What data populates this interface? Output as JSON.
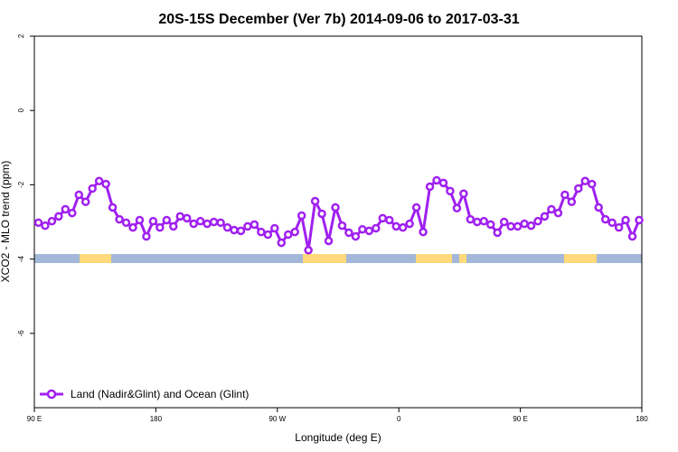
{
  "chart_data": {
    "type": "line",
    "title": "20S-15S December (Ver 7b)   2014-09-06 to 2017-03-31",
    "xlabel": "Longitude (deg E)",
    "ylabel": "XCO2 - MLO trend (ppm)",
    "xlim": [
      90,
      540
    ],
    "xticks": [
      {
        "value": 90,
        "label": "90 E"
      },
      180,
      {
        "value": 270,
        "label": "90 W"
      },
      {
        "value": 360,
        "label": "0"
      },
      {
        "value": 450,
        "label": "90 E"
      },
      {
        "value": 540,
        "label": "180"
      }
    ],
    "ylim": [
      -8,
      2
    ],
    "yticks": [
      2,
      0,
      -2,
      -4,
      -6
    ],
    "legend": "bottom-left",
    "x": [
      93,
      98,
      103,
      108,
      113,
      118,
      123,
      128,
      133,
      138,
      143,
      148,
      153,
      158,
      163,
      168,
      173,
      178,
      183,
      188,
      193,
      198,
      203,
      208,
      213,
      218,
      223,
      228,
      233,
      238,
      243,
      248,
      253,
      258,
      263,
      268,
      273,
      278,
      283,
      288,
      293,
      298,
      303,
      308,
      313,
      318,
      323,
      328,
      333,
      338,
      343,
      348,
      353,
      358,
      363,
      368,
      373,
      378,
      383,
      388,
      393,
      398,
      403,
      408,
      413,
      418,
      423,
      428,
      433,
      438,
      443,
      448,
      453,
      458,
      463,
      468,
      473,
      478,
      483,
      488,
      493,
      498,
      503,
      508,
      513,
      518,
      523,
      528,
      533,
      538
    ],
    "series": [
      {
        "name": "Land (Nadir&Glint) and Ocean (Glint)",
        "color": "#a020f0",
        "values": [
          -3.02,
          -3.1,
          -2.98,
          -2.85,
          -2.66,
          -2.76,
          -2.27,
          -2.46,
          -2.1,
          -1.9,
          -1.98,
          -2.61,
          -2.93,
          -3.02,
          -3.15,
          -2.95,
          -3.39,
          -2.98,
          -3.15,
          -2.95,
          -3.12,
          -2.85,
          -2.9,
          -3.05,
          -2.98,
          -3.05,
          -3.0,
          -3.02,
          -3.15,
          -3.22,
          -3.24,
          -3.12,
          -3.07,
          -3.27,
          -3.34,
          -3.17,
          -3.56,
          -3.34,
          -3.27,
          -2.83,
          -3.76,
          -2.44,
          -2.78,
          -3.51,
          -2.61,
          -3.1,
          -3.29,
          -3.39,
          -3.2,
          -3.24,
          -3.17,
          -2.9,
          -2.95,
          -3.12,
          -3.15,
          -3.05,
          -2.61,
          -3.27,
          -2.05,
          -1.88,
          -1.95,
          -2.17,
          -2.63,
          -2.24,
          -2.93,
          -3.0,
          -2.98,
          -3.07,
          -3.29,
          -3.0,
          -3.12,
          -3.12,
          -3.05,
          -3.1,
          -2.98,
          -2.85,
          -2.66,
          -2.76,
          -2.27,
          -2.46,
          -2.1,
          -1.9,
          -1.98,
          -2.61,
          -2.93,
          -3.02,
          -3.15,
          -2.95,
          -3.39,
          -2.95
        ]
      }
    ]
  }
}
